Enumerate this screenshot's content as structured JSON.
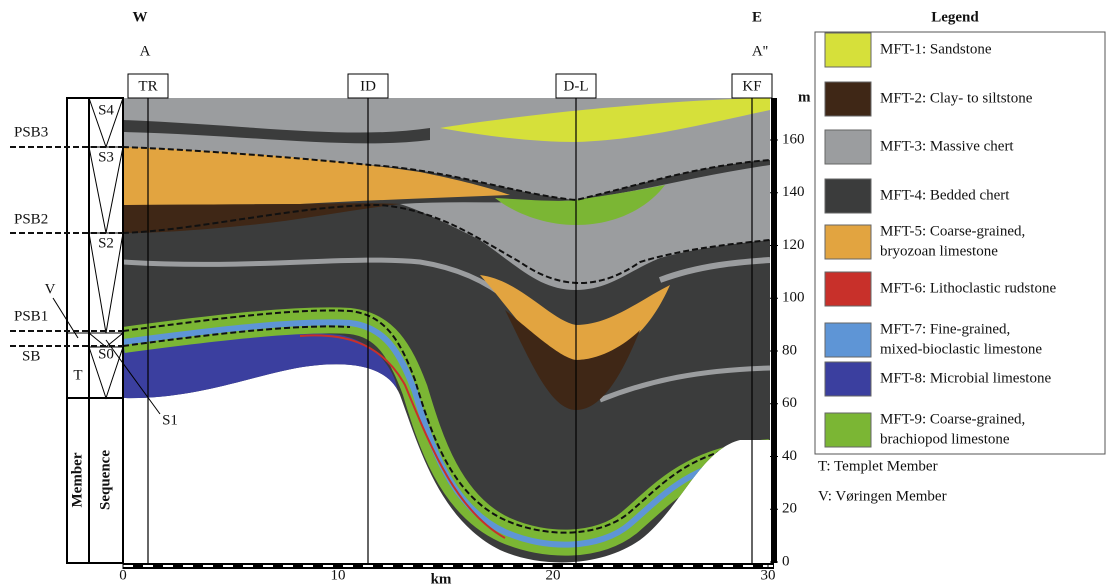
{
  "header": {
    "west": "W",
    "east": "E",
    "start": "A",
    "end": "A''"
  },
  "wells": [
    "TR",
    "ID",
    "D-L",
    "KF"
  ],
  "columns": {
    "member": "Member",
    "sequence": "Sequence",
    "member_labels": [
      "T",
      "V"
    ]
  },
  "sequences": [
    "S4",
    "S3",
    "S2",
    "S0",
    "S1"
  ],
  "surfaces": [
    "PSB3",
    "PSB2",
    "PSB1",
    "SB"
  ],
  "x_axis": {
    "title": "km",
    "ticks": [
      0,
      10,
      20,
      30
    ]
  },
  "y_axis": {
    "title": "m",
    "ticks": [
      0,
      20,
      40,
      60,
      80,
      100,
      120,
      140,
      160
    ]
  },
  "legend": {
    "title": "Legend",
    "items": [
      {
        "label": [
          "MFT-1: Sandstone"
        ],
        "color": "#d6e03a"
      },
      {
        "label": [
          "MFT-2: Clay- to siltstone"
        ],
        "color": "#3f2716"
      },
      {
        "label": [
          "MFT-3: Massive chert"
        ],
        "color": "#9b9d9f"
      },
      {
        "label": [
          "MFT-4: Bedded chert"
        ],
        "color": "#3b3c3c"
      },
      {
        "label": [
          "MFT-5: Coarse-grained,",
          "bryozoan limestone"
        ],
        "color": "#e2a440"
      },
      {
        "label": [
          "MFT-6: Lithoclastic rudstone"
        ],
        "color": "#c8302a"
      },
      {
        "label": [
          "MFT-7: Fine-grained,",
          "mixed-bioclastic limestone"
        ],
        "color": "#5e95d6"
      },
      {
        "label": [
          "MFT-8: Microbial limestone"
        ],
        "color": "#3b3f9f"
      },
      {
        "label": [
          "MFT-9: Coarse-grained,",
          "brachiopod limestone"
        ],
        "color": "#7bb634"
      }
    ],
    "notes": [
      "T: Templet Member",
      "V: Vøringen Member"
    ]
  }
}
